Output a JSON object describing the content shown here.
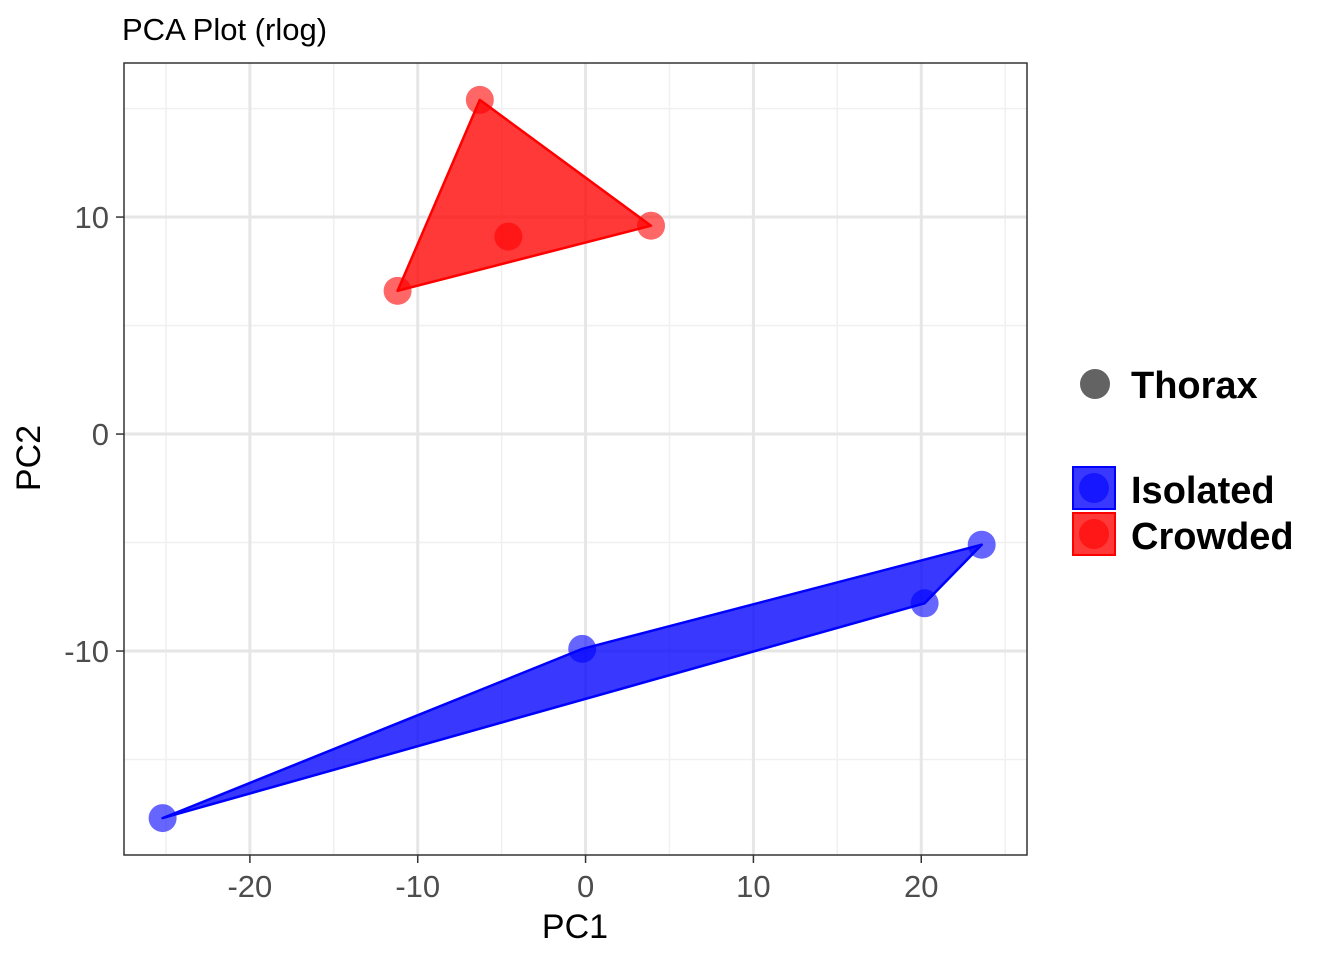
{
  "chart_data": {
    "type": "scatter",
    "title": "PCA Plot (rlog)",
    "xlabel": "PC1",
    "ylabel": "PC2",
    "xlim": [
      -27.5,
      26.3
    ],
    "ylim": [
      -19.4,
      17.1
    ],
    "x_ticks": [
      -20,
      -10,
      0,
      10,
      20
    ],
    "y_ticks": [
      -10,
      0,
      10
    ],
    "x_tick_labels": [
      "-20",
      "-10",
      "0",
      "10",
      "20"
    ],
    "y_tick_labels": [
      "-10",
      "0",
      "10"
    ],
    "x_minor_ticks": [
      -25,
      -15,
      -5,
      5,
      15,
      25
    ],
    "y_minor_ticks": [
      -15,
      -5,
      5,
      15
    ],
    "grid": true,
    "legend_position": "right",
    "shape_legend": {
      "label": "Thorax",
      "color": "#636363"
    },
    "series": [
      {
        "name": "Isolated",
        "color": "#0000ff",
        "points": [
          {
            "x": -25.2,
            "y": -17.7
          },
          {
            "x": -0.2,
            "y": -9.9
          },
          {
            "x": 20.2,
            "y": -7.8
          },
          {
            "x": 23.6,
            "y": -5.1
          }
        ]
      },
      {
        "name": "Crowded",
        "color": "#ff0000",
        "points": [
          {
            "x": -11.2,
            "y": 6.6
          },
          {
            "x": -6.3,
            "y": 15.4
          },
          {
            "x": -4.6,
            "y": 9.1
          },
          {
            "x": 3.9,
            "y": 9.6
          }
        ]
      }
    ]
  }
}
